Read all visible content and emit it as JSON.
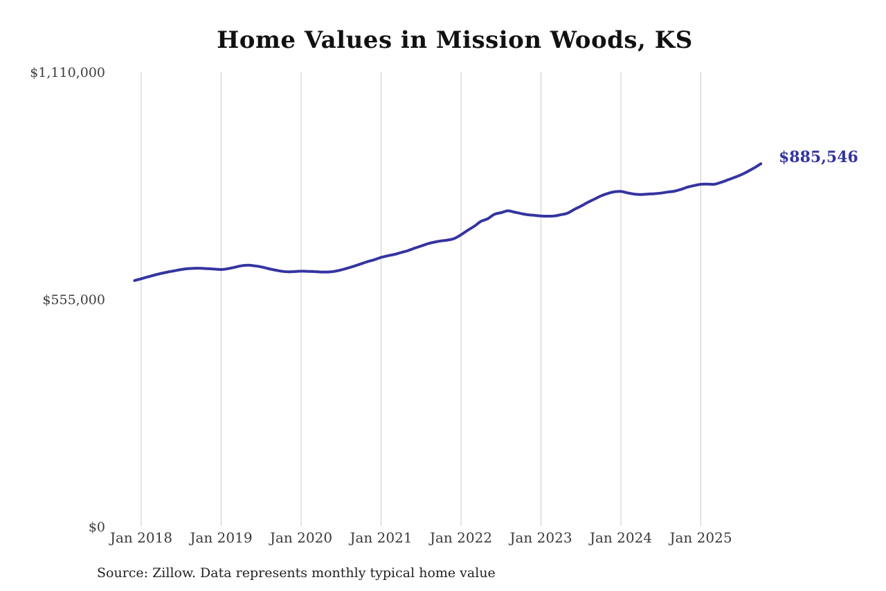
{
  "page": {
    "background": "#ffffff"
  },
  "chart": {
    "title": "Home Values in Mission Woods, KS",
    "end_label": "$885,546",
    "line_color": "#3434a0",
    "end_label_color": "#3333a0",
    "gridline_color": "#c9c9c9"
  },
  "footer": {
    "source": "Source: Zillow. Data represents monthly typical home value"
  },
  "chart_data": {
    "type": "line",
    "title": "Home Values in Mission Woods, KS",
    "xlabel": "",
    "ylabel": "",
    "unit": "USD",
    "ylim": [
      0,
      1110000
    ],
    "y_ticks": [
      1110000,
      555000,
      0
    ],
    "y_tick_labels": [
      "$1,110,000",
      "$555,000",
      "$0"
    ],
    "x_tick_labels": [
      "Jan 2018",
      "Jan 2019",
      "Jan 2020",
      "Jan 2021",
      "Jan 2022",
      "Jan 2023",
      "Jan 2024",
      "Jan 2025"
    ],
    "grid": "vertical-only",
    "legend": "none",
    "line_color": "#3434a0",
    "end_label": "$885,546",
    "source": "Source: Zillow. Data represents monthly typical home value",
    "x": [
      "2017-12",
      "2018-01",
      "2018-02",
      "2018-03",
      "2018-04",
      "2018-05",
      "2018-06",
      "2018-07",
      "2018-08",
      "2018-09",
      "2018-10",
      "2018-11",
      "2018-12",
      "2019-01",
      "2019-02",
      "2019-03",
      "2019-04",
      "2019-05",
      "2019-06",
      "2019-07",
      "2019-08",
      "2019-09",
      "2019-10",
      "2019-11",
      "2019-12",
      "2020-01",
      "2020-02",
      "2020-03",
      "2020-04",
      "2020-05",
      "2020-06",
      "2020-07",
      "2020-08",
      "2020-09",
      "2020-10",
      "2020-11",
      "2020-12",
      "2021-01",
      "2021-02",
      "2021-03",
      "2021-04",
      "2021-05",
      "2021-06",
      "2021-07",
      "2021-08",
      "2021-09",
      "2021-10",
      "2021-11",
      "2021-12",
      "2022-01",
      "2022-02",
      "2022-03",
      "2022-04",
      "2022-05",
      "2022-06",
      "2022-07",
      "2022-08",
      "2022-09",
      "2022-10",
      "2022-11",
      "2022-12",
      "2023-01",
      "2023-02",
      "2023-03",
      "2023-04",
      "2023-05",
      "2023-06",
      "2023-07",
      "2023-08",
      "2023-09",
      "2023-10",
      "2023-11",
      "2023-12",
      "2024-01",
      "2024-02",
      "2024-03",
      "2024-04",
      "2024-05",
      "2024-06",
      "2024-07",
      "2024-08",
      "2024-09",
      "2024-10",
      "2024-11",
      "2024-12",
      "2025-01",
      "2025-02",
      "2025-03",
      "2025-04",
      "2025-05",
      "2025-06",
      "2025-07",
      "2025-08",
      "2025-09",
      "2025-10"
    ],
    "values": [
      600000,
      604500,
      609000,
      613500,
      617500,
      621000,
      624000,
      627000,
      629000,
      630000,
      630000,
      629000,
      628000,
      627000,
      629000,
      632500,
      636000,
      637500,
      636000,
      633500,
      629500,
      626000,
      623000,
      621500,
      622000,
      623000,
      622500,
      622000,
      621000,
      621000,
      622500,
      626000,
      630500,
      635500,
      641000,
      646500,
      651000,
      656500,
      660500,
      664000,
      668500,
      673000,
      679000,
      684500,
      690000,
      694000,
      697000,
      699000,
      703000,
      712000,
      723000,
      733000,
      745000,
      751000,
      762000,
      766000,
      770500,
      767500,
      764000,
      761000,
      759500,
      758000,
      757500,
      758000,
      761000,
      765000,
      774000,
      782000,
      791000,
      799000,
      807000,
      813000,
      817000,
      818000,
      814500,
      811500,
      810500,
      811500,
      812500,
      814000,
      816500,
      818500,
      823000,
      828500,
      832500,
      835500,
      836000,
      835500,
      840000,
      846000,
      852000,
      858500,
      866500,
      875500,
      885546
    ]
  }
}
